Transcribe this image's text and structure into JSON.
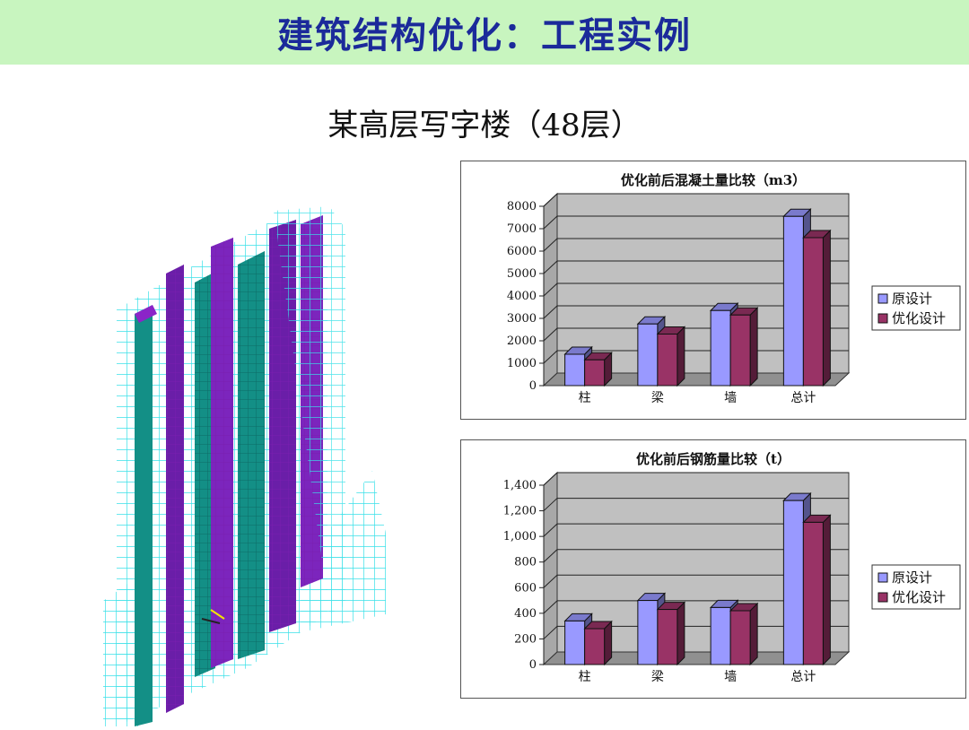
{
  "header": {
    "title": "建筑结构优化：工程实例"
  },
  "subtitle": "某高层写字楼（48层）",
  "building_image": {
    "description_icon": "building-frame-3d-model"
  },
  "colors": {
    "header_bg": "#c8f5bf",
    "title": "#1b2a9a",
    "original": "#9999ff",
    "optimized": "#993366",
    "wall": "#c0c0c0"
  },
  "chart_data": [
    {
      "type": "bar",
      "title": "优化前后混凝土量比较（m3）",
      "categories": [
        "柱",
        "梁",
        "墙",
        "总计"
      ],
      "series": [
        {
          "name": "原设计",
          "values": [
            1400,
            2750,
            3350,
            7550
          ]
        },
        {
          "name": "优化设计",
          "values": [
            1150,
            2300,
            3150,
            6600
          ]
        }
      ],
      "ylim": [
        0,
        8000
      ],
      "yticks": [
        "8000",
        "7000",
        "6000",
        "5000",
        "4000",
        "3000",
        "2000",
        "1000",
        "0"
      ],
      "ytick_values": [
        8000,
        7000,
        6000,
        5000,
        4000,
        3000,
        2000,
        1000,
        0
      ],
      "legend": "right",
      "grid": true
    },
    {
      "type": "bar",
      "title": "优化前后钢筋量比较（t）",
      "categories": [
        "柱",
        "梁",
        "墙",
        "总计"
      ],
      "series": [
        {
          "name": "原设计",
          "values": [
            340,
            500,
            445,
            1280
          ]
        },
        {
          "name": "优化设计",
          "values": [
            280,
            430,
            420,
            1110
          ]
        }
      ],
      "ylim": [
        0,
        1400
      ],
      "yticks": [
        "1,400",
        "1,200",
        "1,000",
        "800",
        "600",
        "400",
        "200",
        "0"
      ],
      "ytick_values": [
        1400,
        1200,
        1000,
        800,
        600,
        400,
        200,
        0
      ],
      "legend": "right",
      "grid": true
    }
  ]
}
